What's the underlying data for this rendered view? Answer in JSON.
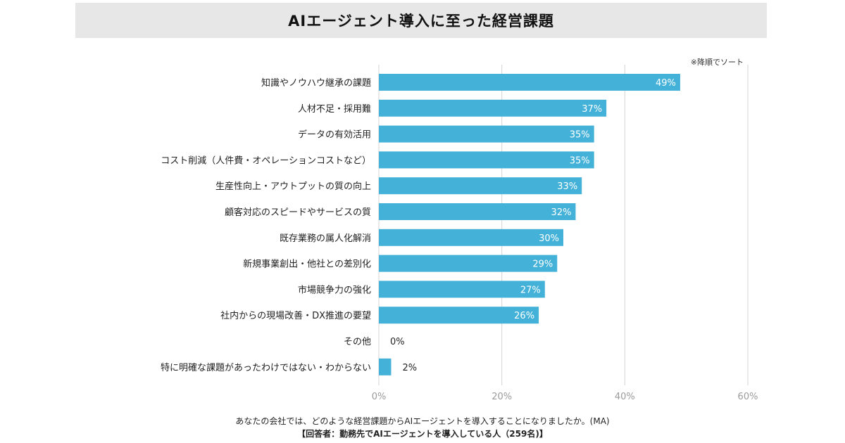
{
  "title": "AIエージェント導入に至った経営課題",
  "chart_data": {
    "type": "bar",
    "orientation": "horizontal",
    "title": "AIエージェント導入に至った経営課題",
    "sort_note": "※降順でソート",
    "categories": [
      "知識やノウハウ継承の課題",
      "人材不足・採用難",
      "データの有効活用",
      "コスト削減（人件費・オペレーションコストなど）",
      "生産性向上・アウトプットの質の向上",
      "顧客対応のスピードやサービスの質",
      "既存業務の属人化解消",
      "新規事業創出・他社との差別化",
      "市場競争力の強化",
      "社内からの現場改善・DX推進の要望",
      "その他",
      "特に明確な課題があったわけではない・わからない"
    ],
    "values": [
      49,
      37,
      35,
      35,
      33,
      32,
      30,
      29,
      27,
      26,
      0,
      2
    ],
    "value_labels": [
      "49%",
      "37%",
      "35%",
      "35%",
      "33%",
      "32%",
      "30%",
      "29%",
      "27%",
      "26%",
      "0%",
      "2%"
    ],
    "xlim": [
      0,
      60
    ],
    "xticks": [
      0,
      20,
      40,
      60
    ],
    "xtick_labels": [
      "0%",
      "20%",
      "40%",
      "60%"
    ],
    "grid": true,
    "bar_color": "#43b1d8",
    "label_color_inside": "#ffffff",
    "label_color_outside": "#222222",
    "gridline_color": "#d4d4d4",
    "tick_label_color": "#9a9a9a"
  },
  "footer": {
    "question": "あなたの会社では、どのような経営課題からAIエージェントを導入することになりましたか。(MA)",
    "respondents": "【回答者：勤務先でAIエージェントを導入している人（259名)】"
  }
}
